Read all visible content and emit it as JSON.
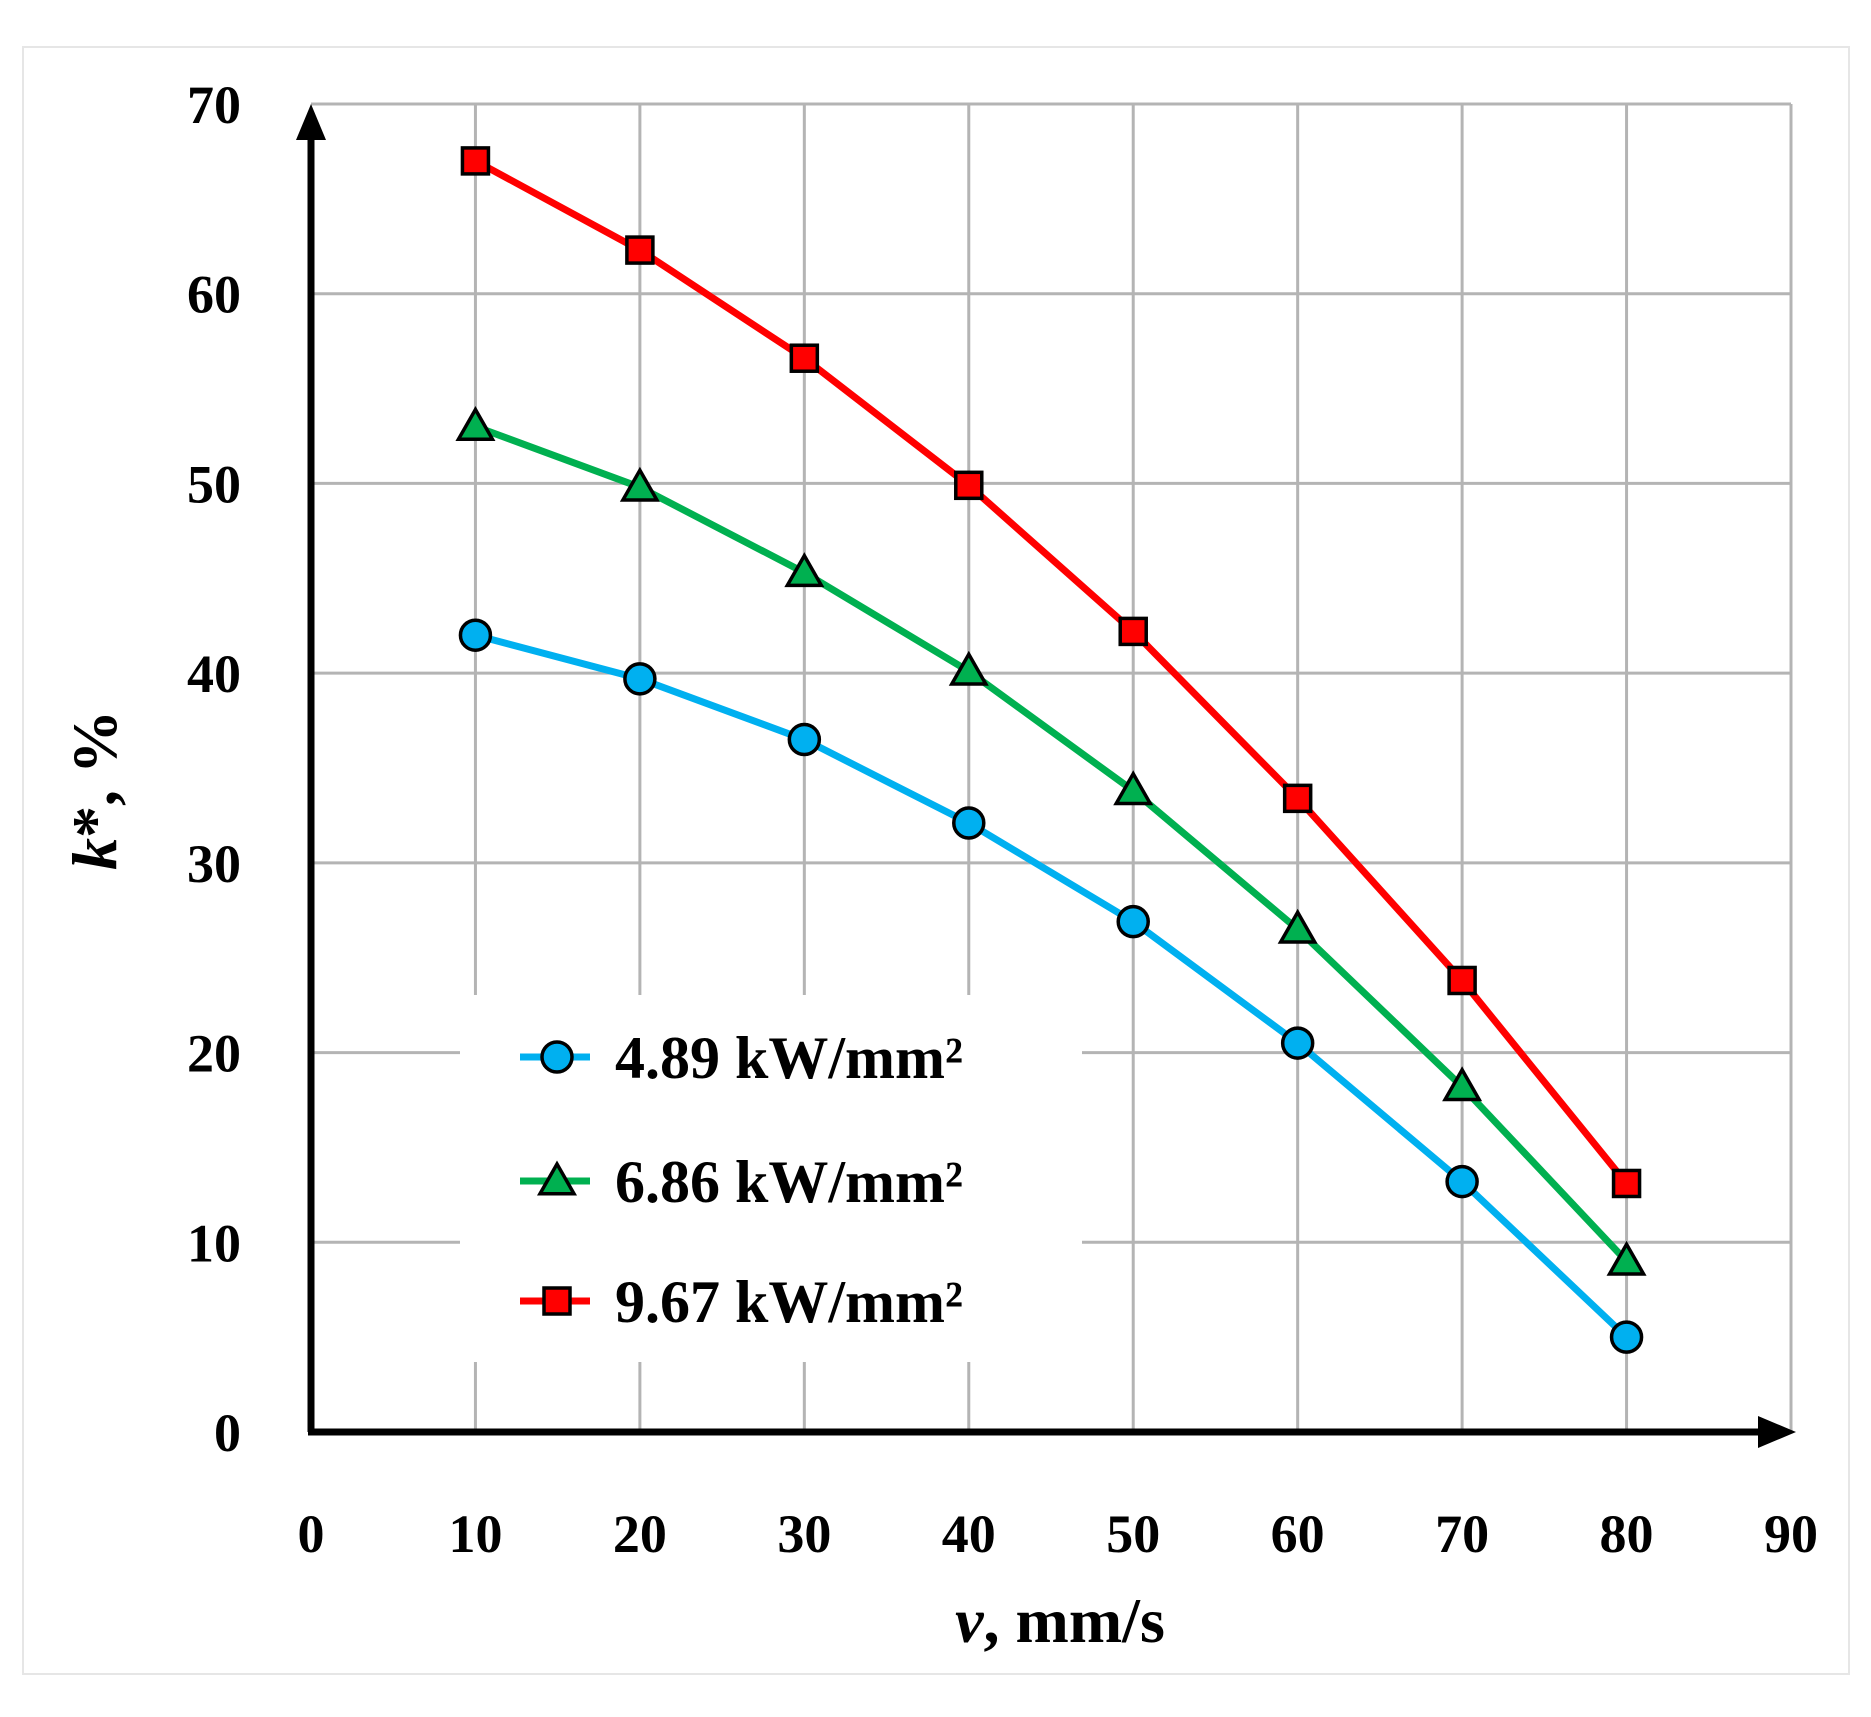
{
  "chart_data": {
    "type": "line",
    "title": "",
    "xlabel_var": "v",
    "xlabel_unit": ", mm/s",
    "ylabel_var": "k",
    "ylabel_unit": "*, %",
    "xlim": [
      0,
      90
    ],
    "ylim": [
      0,
      70
    ],
    "x_ticks": [
      "0",
      "10",
      "20",
      "30",
      "40",
      "50",
      "60",
      "70",
      "80",
      "90"
    ],
    "y_ticks": [
      "0",
      "10",
      "20",
      "30",
      "40",
      "50",
      "60",
      "70"
    ],
    "grid": true,
    "legend_position": "lower-left-center",
    "x": [
      10,
      20,
      30,
      40,
      50,
      60,
      70,
      80
    ],
    "series": [
      {
        "name": "4.89 kW/mm²",
        "color": "#00b0f0",
        "marker": "circle",
        "values": [
          42.0,
          39.7,
          36.5,
          32.1,
          26.9,
          20.5,
          13.2,
          5.0
        ]
      },
      {
        "name": "6.86 kW/mm²",
        "color": "#00b050",
        "marker": "triangle",
        "values": [
          53.0,
          49.8,
          45.3,
          40.1,
          33.8,
          26.5,
          18.2,
          9.0
        ]
      },
      {
        "name": "9.67 kW/mm²",
        "color": "#ff0000",
        "marker": "square",
        "values": [
          67.0,
          62.3,
          56.6,
          49.9,
          42.2,
          33.4,
          23.8,
          13.1
        ]
      }
    ]
  }
}
